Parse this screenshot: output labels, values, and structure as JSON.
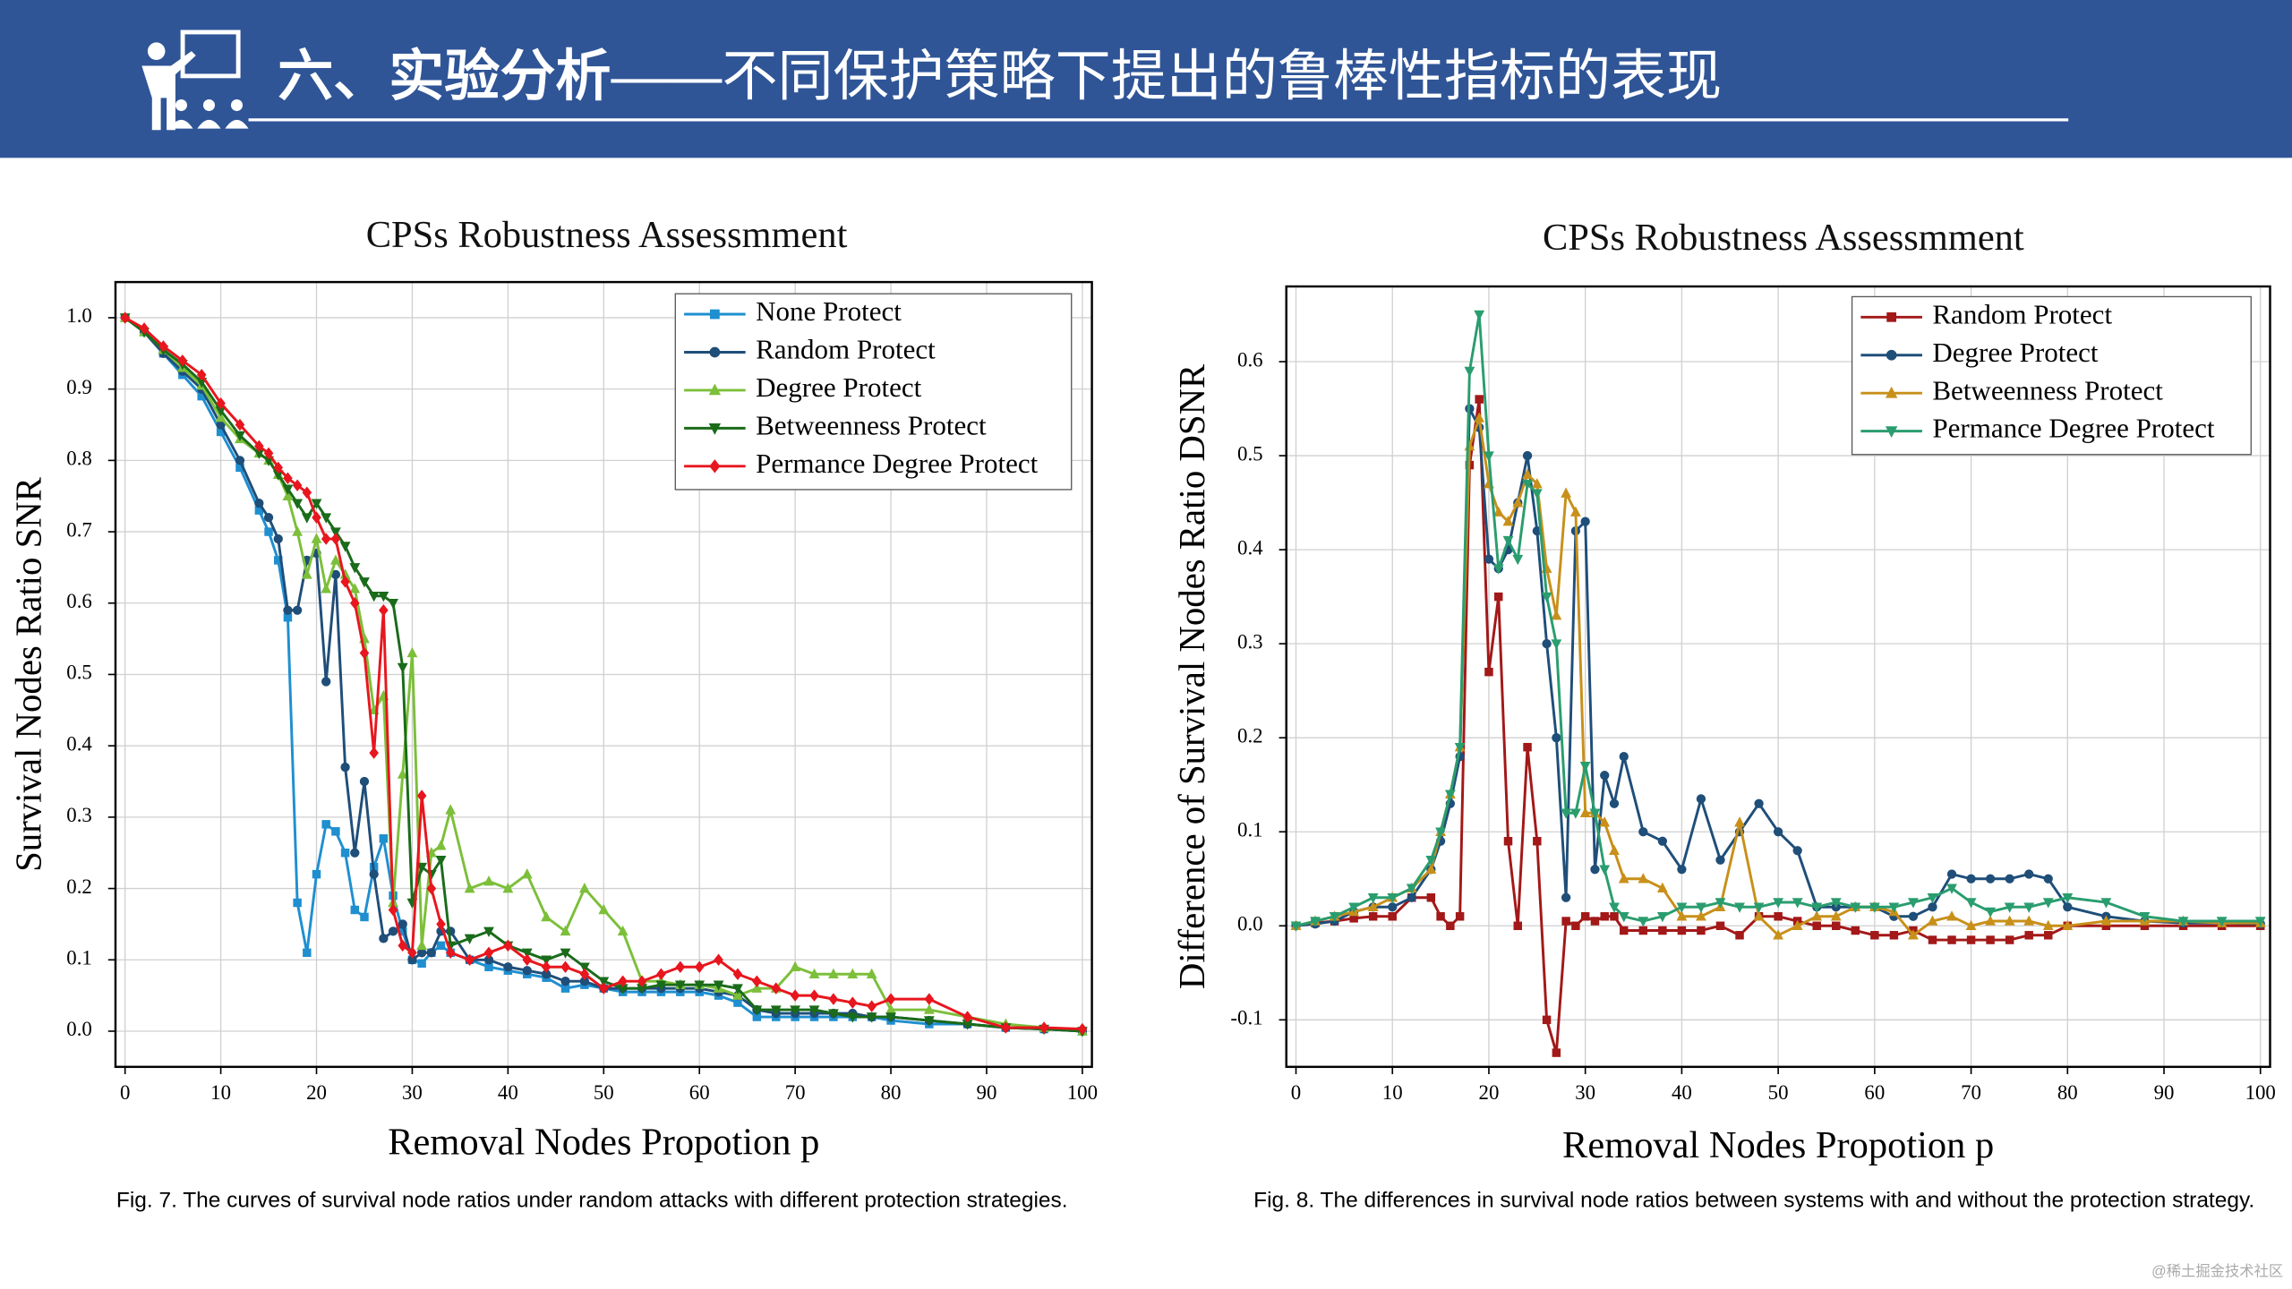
{
  "header": {
    "title_bold": "六、实验分析",
    "title_rest": "——不同保护策略下提出的鲁棒性指标的表现"
  },
  "watermark": "@稀土掘金技术社区",
  "chart_data": [
    {
      "type": "line",
      "title": "CPSs Robustness Assessmment",
      "x_label": "Removal Nodes Propotion p",
      "y_label": "Survival Nodes Ratio SNR",
      "caption": "Fig. 7. The curves of survival node ratios under random attacks with different protection strategies.",
      "xlim": [
        -1,
        101
      ],
      "ylim": [
        -0.05,
        1.05
      ],
      "xticks": [
        0,
        10,
        20,
        30,
        40,
        50,
        60,
        70,
        80,
        90,
        100
      ],
      "yticks": [
        {
          "value": 0,
          "label": "0.0"
        },
        0.1,
        0.2,
        0.3,
        0.4,
        0.5,
        0.6,
        0.7,
        0.8,
        0.9,
        {
          "value": 1,
          "label": "1.0"
        }
      ],
      "grid": true,
      "legend": "upper right",
      "x": [
        0,
        2,
        4,
        6,
        8,
        10,
        12,
        14,
        15,
        16,
        17,
        18,
        19,
        20,
        21,
        22,
        23,
        24,
        25,
        26,
        27,
        28,
        29,
        30,
        31,
        32,
        33,
        34,
        36,
        38,
        40,
        42,
        44,
        46,
        48,
        50,
        52,
        54,
        56,
        58,
        60,
        62,
        64,
        66,
        68,
        70,
        72,
        74,
        76,
        78,
        80,
        84,
        88,
        92,
        96,
        100
      ],
      "series": [
        {
          "name": "None Protect",
          "color": "#1f8fd0",
          "marker": "square",
          "values": [
            1.0,
            0.98,
            0.95,
            0.92,
            0.89,
            0.84,
            0.79,
            0.73,
            0.7,
            0.66,
            0.58,
            0.18,
            0.11,
            0.22,
            0.29,
            0.28,
            0.25,
            0.17,
            0.16,
            0.23,
            0.27,
            0.19,
            0.14,
            0.1,
            0.095,
            0.11,
            0.12,
            0.11,
            0.1,
            0.09,
            0.085,
            0.08,
            0.075,
            0.06,
            0.065,
            0.06,
            0.055,
            0.055,
            0.055,
            0.055,
            0.055,
            0.05,
            0.04,
            0.02,
            0.02,
            0.02,
            0.02,
            0.02,
            0.02,
            0.02,
            0.015,
            0.01,
            0.01,
            0.005,
            0.003,
            0.0
          ]
        },
        {
          "name": "Random Protect",
          "color": "#1f4e79",
          "marker": "circle",
          "values": [
            1.0,
            0.98,
            0.95,
            0.925,
            0.9,
            0.85,
            0.8,
            0.74,
            0.72,
            0.69,
            0.59,
            0.59,
            0.66,
            0.67,
            0.49,
            0.64,
            0.37,
            0.25,
            0.35,
            0.22,
            0.13,
            0.14,
            0.15,
            0.1,
            0.11,
            0.11,
            0.14,
            0.14,
            0.1,
            0.1,
            0.09,
            0.085,
            0.08,
            0.07,
            0.07,
            0.06,
            0.06,
            0.06,
            0.06,
            0.06,
            0.06,
            0.055,
            0.05,
            0.03,
            0.025,
            0.025,
            0.025,
            0.025,
            0.025,
            0.02,
            0.02,
            0.015,
            0.01,
            0.005,
            0.003,
            0.0
          ]
        },
        {
          "name": "Degree Protect",
          "color": "#7cbf3a",
          "marker": "triangle",
          "values": [
            1.0,
            0.98,
            0.955,
            0.93,
            0.905,
            0.86,
            0.83,
            0.81,
            0.8,
            0.78,
            0.75,
            0.7,
            0.64,
            0.69,
            0.62,
            0.66,
            0.64,
            0.62,
            0.55,
            0.45,
            0.47,
            0.18,
            0.36,
            0.53,
            0.12,
            0.25,
            0.26,
            0.31,
            0.2,
            0.21,
            0.2,
            0.22,
            0.16,
            0.14,
            0.2,
            0.17,
            0.14,
            0.07,
            0.07,
            0.065,
            0.065,
            0.06,
            0.05,
            0.06,
            0.06,
            0.09,
            0.08,
            0.08,
            0.08,
            0.08,
            0.03,
            0.03,
            0.02,
            0.01,
            0.005,
            0.0
          ]
        },
        {
          "name": "Betweenness Protect",
          "color": "#1a6b1a",
          "marker": "triangle-down",
          "values": [
            1.0,
            0.98,
            0.955,
            0.935,
            0.91,
            0.87,
            0.835,
            0.81,
            0.8,
            0.78,
            0.76,
            0.74,
            0.72,
            0.74,
            0.72,
            0.7,
            0.68,
            0.65,
            0.63,
            0.61,
            0.61,
            0.6,
            0.51,
            0.18,
            0.23,
            0.22,
            0.24,
            0.12,
            0.13,
            0.14,
            0.12,
            0.11,
            0.1,
            0.11,
            0.09,
            0.07,
            0.06,
            0.06,
            0.065,
            0.065,
            0.065,
            0.065,
            0.06,
            0.03,
            0.03,
            0.03,
            0.03,
            0.025,
            0.02,
            0.02,
            0.02,
            0.015,
            0.01,
            0.005,
            0.003,
            0.0
          ]
        },
        {
          "name": "Permance Degree Protect",
          "color": "#e8161e",
          "marker": "diamond",
          "values": [
            1.0,
            0.985,
            0.96,
            0.94,
            0.92,
            0.88,
            0.85,
            0.82,
            0.81,
            0.79,
            0.775,
            0.765,
            0.755,
            0.72,
            0.69,
            0.69,
            0.63,
            0.6,
            0.53,
            0.39,
            0.59,
            0.17,
            0.12,
            0.11,
            0.33,
            0.2,
            0.15,
            0.11,
            0.1,
            0.11,
            0.12,
            0.1,
            0.09,
            0.09,
            0.08,
            0.06,
            0.07,
            0.07,
            0.08,
            0.09,
            0.09,
            0.1,
            0.08,
            0.07,
            0.06,
            0.05,
            0.05,
            0.045,
            0.04,
            0.035,
            0.045,
            0.045,
            0.02,
            0.005,
            0.005,
            0.003
          ]
        }
      ]
    },
    {
      "type": "line",
      "title": "CPSs Robustness Assessmment",
      "x_label": "Removal Nodes Propotion p",
      "y_label": "Difference of Survival Nodes Ratio DSNR",
      "caption": "Fig. 8. The differences in survival node ratios between systems with and without the protection strategy.",
      "xlim": [
        -1,
        101
      ],
      "ylim": [
        -0.15,
        0.68
      ],
      "xticks": [
        0,
        10,
        20,
        30,
        40,
        50,
        60,
        70,
        80,
        90,
        100
      ],
      "yticks": [
        -0.1,
        {
          "value": 0,
          "label": "0.0"
        },
        0.1,
        0.2,
        0.3,
        0.4,
        0.5,
        0.6
      ],
      "grid": true,
      "legend": "upper right",
      "x": [
        0,
        2,
        4,
        6,
        8,
        10,
        12,
        14,
        15,
        16,
        17,
        18,
        19,
        20,
        21,
        22,
        23,
        24,
        25,
        26,
        27,
        28,
        29,
        30,
        31,
        32,
        33,
        34,
        36,
        38,
        40,
        42,
        44,
        46,
        48,
        50,
        52,
        54,
        56,
        58,
        60,
        62,
        64,
        66,
        68,
        70,
        72,
        74,
        76,
        78,
        80,
        84,
        88,
        92,
        96,
        100
      ],
      "series": [
        {
          "name": "Random Protect",
          "color": "#a31818",
          "marker": "square",
          "values": [
            0,
            0.003,
            0.005,
            0.008,
            0.01,
            0.01,
            0.03,
            0.03,
            0.01,
            0,
            0.01,
            0.49,
            0.56,
            0.27,
            0.35,
            0.09,
            0.0,
            0.19,
            0.09,
            -0.1,
            -0.135,
            0.005,
            0.0,
            0.01,
            0.005,
            0.01,
            0.01,
            -0.005,
            -0.005,
            -0.005,
            -0.005,
            -0.005,
            0,
            -0.01,
            0.01,
            0.01,
            0.005,
            0.0,
            0,
            -0.005,
            -0.01,
            -0.01,
            -0.005,
            -0.015,
            -0.015,
            -0.015,
            -0.015,
            -0.015,
            -0.01,
            -0.01,
            0,
            0,
            0,
            0,
            0,
            0
          ]
        },
        {
          "name": "Degree Protect",
          "color": "#1f4e79",
          "marker": "circle",
          "values": [
            0,
            0.002,
            0.005,
            0.015,
            0.02,
            0.02,
            0.03,
            0.06,
            0.09,
            0.13,
            0.18,
            0.55,
            0.53,
            0.39,
            0.38,
            0.4,
            0.45,
            0.5,
            0.42,
            0.3,
            0.2,
            0.03,
            0.42,
            0.43,
            0.06,
            0.16,
            0.13,
            0.18,
            0.1,
            0.09,
            0.06,
            0.135,
            0.07,
            0.1,
            0.13,
            0.1,
            0.08,
            0.02,
            0.02,
            0.02,
            0.02,
            0.01,
            0.01,
            0.02,
            0.055,
            0.05,
            0.05,
            0.05,
            0.055,
            0.05,
            0.02,
            0.01,
            0.005,
            0.003,
            0.003,
            0.002
          ]
        },
        {
          "name": "Betweenness Protect",
          "color": "#c8901a",
          "marker": "triangle",
          "values": [
            0,
            0.005,
            0.01,
            0.015,
            0.02,
            0.03,
            0.04,
            0.06,
            0.1,
            0.14,
            0.19,
            0.51,
            0.54,
            0.47,
            0.44,
            0.43,
            0.45,
            0.48,
            0.47,
            0.38,
            0.33,
            0.46,
            0.44,
            0.12,
            0.12,
            0.11,
            0.08,
            0.05,
            0.05,
            0.04,
            0.01,
            0.01,
            0.02,
            0.11,
            0.01,
            -0.01,
            0.0,
            0.01,
            0.01,
            0.02,
            0.02,
            0.015,
            -0.01,
            0.005,
            0.01,
            0.0,
            0.005,
            0.005,
            0.005,
            0.0,
            0,
            0.005,
            0.005,
            0.005,
            0.003,
            0.003
          ]
        },
        {
          "name": "Permance Degree Protect",
          "color": "#2a9d6f",
          "marker": "triangle-down",
          "values": [
            0,
            0.005,
            0.01,
            0.02,
            0.03,
            0.03,
            0.04,
            0.07,
            0.1,
            0.14,
            0.19,
            0.59,
            0.65,
            0.5,
            0.38,
            0.41,
            0.39,
            0.47,
            0.46,
            0.35,
            0.3,
            0.12,
            0.12,
            0.17,
            0.12,
            0.06,
            0.02,
            0.01,
            0.005,
            0.01,
            0.02,
            0.02,
            0.025,
            0.02,
            0.02,
            0.025,
            0.025,
            0.02,
            0.025,
            0.02,
            0.02,
            0.02,
            0.025,
            0.03,
            0.04,
            0.025,
            0.015,
            0.02,
            0.02,
            0.025,
            0.03,
            0.025,
            0.01,
            0.005,
            0.005,
            0.005
          ]
        }
      ]
    }
  ]
}
